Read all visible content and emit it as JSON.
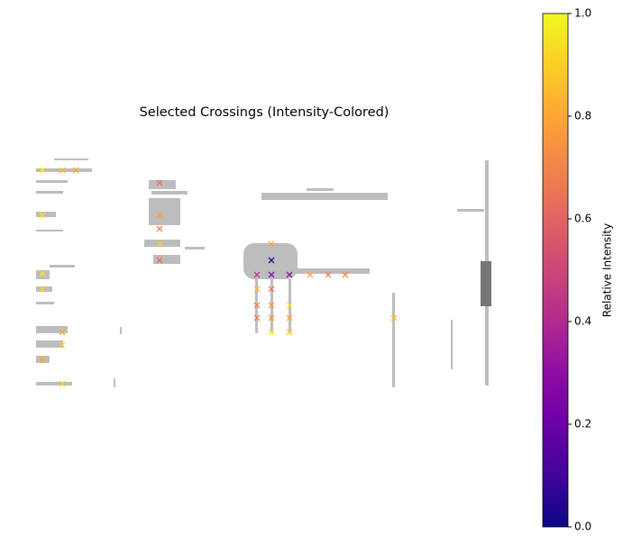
{
  "chart_data": {
    "type": "scatter",
    "title": "Selected Crossings (Intensity-Colored)",
    "colormap": "plasma",
    "colorbar_label": "Relative Intensity",
    "clim": [
      0,
      1
    ],
    "cticks": [
      {
        "value": 0,
        "label": "0.0"
      },
      {
        "value": 0.2,
        "label": "0.2"
      },
      {
        "value": 0.4,
        "label": "0.4"
      },
      {
        "value": 0.6,
        "label": "0.6"
      },
      {
        "value": 0.8,
        "label": "0.8"
      },
      {
        "value": 1,
        "label": "1.0"
      }
    ],
    "xlim": [
      0,
      505
    ],
    "ylim": [
      255,
      0
    ],
    "x": [
      7,
      29,
      44,
      7,
      137,
      137,
      137,
      137,
      137,
      7,
      7,
      29,
      29,
      7,
      29,
      261,
      261,
      245,
      261,
      281,
      304,
      324,
      343,
      245,
      261,
      281,
      245,
      261,
      245,
      261,
      281,
      397,
      261,
      281
    ],
    "y": [
      14,
      14,
      14,
      64,
      28,
      64,
      79,
      96,
      114,
      129,
      146,
      194,
      208,
      224,
      251,
      96,
      114,
      130,
      130,
      130,
      130,
      130,
      130,
      146,
      146,
      164,
      164,
      164,
      178,
      178,
      178,
      178,
      194,
      194
    ],
    "intensity": [
      0.95,
      0.85,
      0.8,
      0.95,
      0.65,
      0.8,
      0.7,
      0.9,
      0.65,
      0.95,
      0.9,
      0.8,
      0.9,
      0.8,
      0.9,
      0.8,
      0.05,
      0.45,
      0.3,
      0.3,
      0.8,
      0.7,
      0.7,
      0.85,
      0.65,
      0.95,
      0.7,
      0.75,
      0.7,
      0.75,
      0.8,
      0.85,
      0.95,
      0.9
    ]
  }
}
